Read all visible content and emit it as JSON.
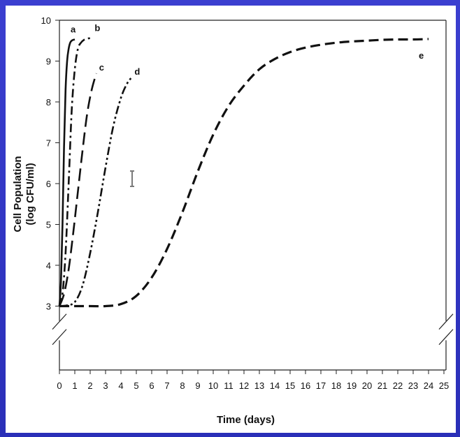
{
  "chart_data": {
    "type": "line",
    "xlabel": "Time (days)",
    "ylabel": [
      "Cell Population",
      "(log CFU/ml)"
    ],
    "xlim": [
      0,
      25
    ],
    "ylim": [
      3,
      10
    ],
    "x_ticks": [
      0,
      1,
      2,
      3,
      4,
      5,
      6,
      7,
      8,
      9,
      10,
      11,
      12,
      13,
      14,
      15,
      16,
      17,
      18,
      19,
      20,
      21,
      22,
      23,
      24,
      25
    ],
    "y_ticks": [
      3,
      4,
      5,
      6,
      7,
      8,
      9,
      10
    ],
    "axis_break": true,
    "grid": false,
    "series": [
      {
        "name": "a",
        "style": "solid",
        "x": [
          0,
          0.1,
          0.2,
          0.3,
          0.4,
          0.5,
          0.6,
          0.7,
          0.8,
          0.9,
          1.0
        ],
        "y": [
          3,
          3.6,
          5.0,
          6.9,
          8.3,
          9.0,
          9.3,
          9.45,
          9.5,
          9.52,
          9.53
        ]
      },
      {
        "name": "b",
        "style": "dashdot",
        "x": [
          0,
          0.2,
          0.4,
          0.6,
          0.8,
          1.0,
          1.2,
          1.4,
          1.6,
          1.8,
          2.0,
          2.2
        ],
        "y": [
          3,
          3.3,
          4.3,
          6.0,
          7.8,
          8.8,
          9.3,
          9.45,
          9.52,
          9.55,
          9.56,
          9.56
        ]
      },
      {
        "name": "c",
        "style": "longdash",
        "x": [
          0,
          0.3,
          0.6,
          0.9,
          1.2,
          1.5,
          1.8,
          2.1,
          2.4
        ],
        "y": [
          3,
          3.3,
          3.9,
          4.8,
          5.8,
          6.8,
          7.7,
          8.3,
          8.7
        ]
      },
      {
        "name": "d",
        "style": "dashdotdot",
        "x": [
          0,
          0.5,
          1.0,
          1.5,
          2.0,
          2.5,
          3.0,
          3.5,
          4.0,
          4.4,
          4.7
        ],
        "y": [
          3,
          3.02,
          3.1,
          3.5,
          4.3,
          5.3,
          6.4,
          7.4,
          8.1,
          8.45,
          8.6
        ]
      },
      {
        "name": "e",
        "style": "dashed",
        "x": [
          0,
          1,
          2,
          3,
          4,
          5,
          6,
          7,
          8,
          9,
          10,
          11,
          12,
          13,
          14,
          15,
          16,
          17,
          18,
          19,
          20,
          21,
          22,
          23,
          24
        ],
        "y": [
          3,
          3,
          3,
          3,
          3.05,
          3.25,
          3.7,
          4.4,
          5.3,
          6.3,
          7.2,
          7.9,
          8.4,
          8.8,
          9.05,
          9.22,
          9.33,
          9.4,
          9.45,
          9.48,
          9.5,
          9.52,
          9.53,
          9.53,
          9.54
        ]
      }
    ]
  }
}
